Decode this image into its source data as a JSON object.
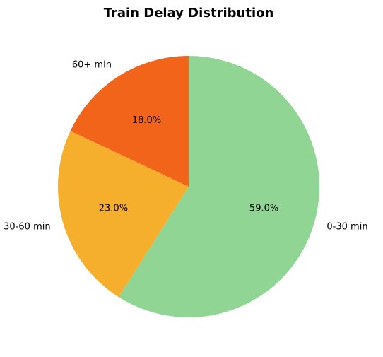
{
  "chart_data": {
    "type": "pie",
    "title": "Train Delay Distribution",
    "categories": [
      "0-30 min",
      "30-60 min",
      "60+ min"
    ],
    "values": [
      59.0,
      23.0,
      18.0
    ],
    "percent_labels": [
      "59.0%",
      "23.0%",
      "18.0%"
    ],
    "colors": [
      "#90d593",
      "#f6ae2d",
      "#f26419"
    ],
    "start_angle_deg": 90,
    "direction": "clockwise"
  }
}
